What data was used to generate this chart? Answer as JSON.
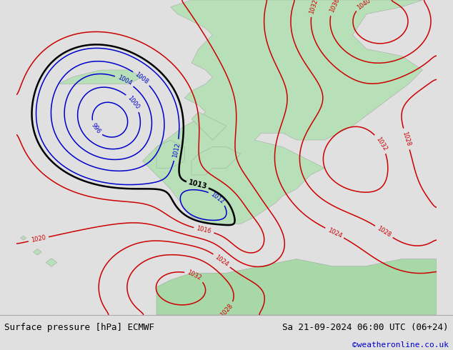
{
  "title_left": "Surface pressure [hPa] ECMWF",
  "title_right": "Sa 21-09-2024 06:00 UTC (06+24)",
  "watermark": "©weatheronline.co.uk",
  "watermark_color": "#0000cc",
  "fig_width": 6.34,
  "fig_height": 4.9,
  "dpi": 100,
  "bg_ocean": "#d0d8e8",
  "bg_land": "#b8e0b8",
  "bg_land2": "#a8d8a8",
  "text_color_left": "#000000",
  "text_color_right": "#000000",
  "isobar_red": "#cc0000",
  "isobar_blue": "#0000cc",
  "isobar_black": "#000000"
}
